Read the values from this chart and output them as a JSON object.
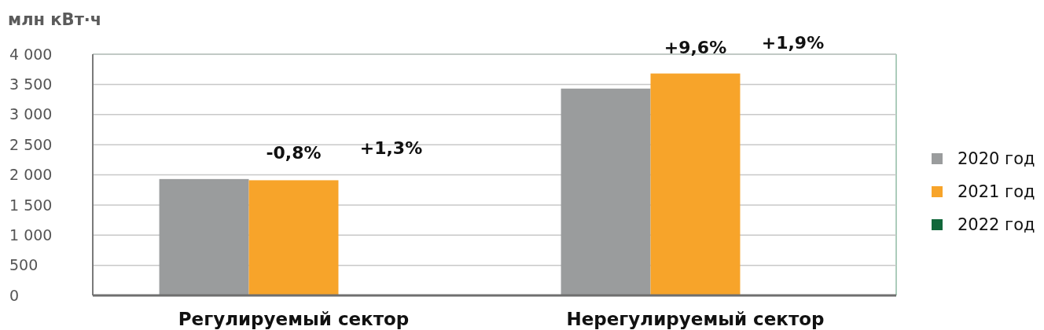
{
  "chart_data": {
    "type": "bar",
    "ylabel": "млн кВт·ч",
    "categories": [
      "Регулируемый сектор",
      "Нерегулируемый сектор"
    ],
    "series": [
      {
        "name": "2020 год",
        "color": "#9a9c9d",
        "values": [
          1930,
          3430
        ]
      },
      {
        "name": "2021 год",
        "color": "#f7a42a",
        "values": [
          1910,
          3680
        ]
      },
      {
        "name": "2022 год",
        "color": "#11673a",
        "values": [
          null,
          null
        ]
      }
    ],
    "annotations": [
      "-0,8%",
      "+1,3%",
      "+9,6%",
      "+1,9%"
    ],
    "ylim": [
      0,
      4000
    ],
    "yticks": [
      0,
      500,
      {
        "value": 1000,
        "label": "1 000"
      },
      {
        "value": 1500,
        "label": "1 500"
      },
      {
        "value": 2000,
        "label": "2 000"
      },
      {
        "value": 2500,
        "label": "2 500"
      },
      {
        "value": 3000,
        "label": "3 000"
      },
      {
        "value": 3500,
        "label": "3 500"
      },
      {
        "value": 4000,
        "label": "4 000"
      }
    ],
    "grid": "y",
    "legend": "right"
  }
}
